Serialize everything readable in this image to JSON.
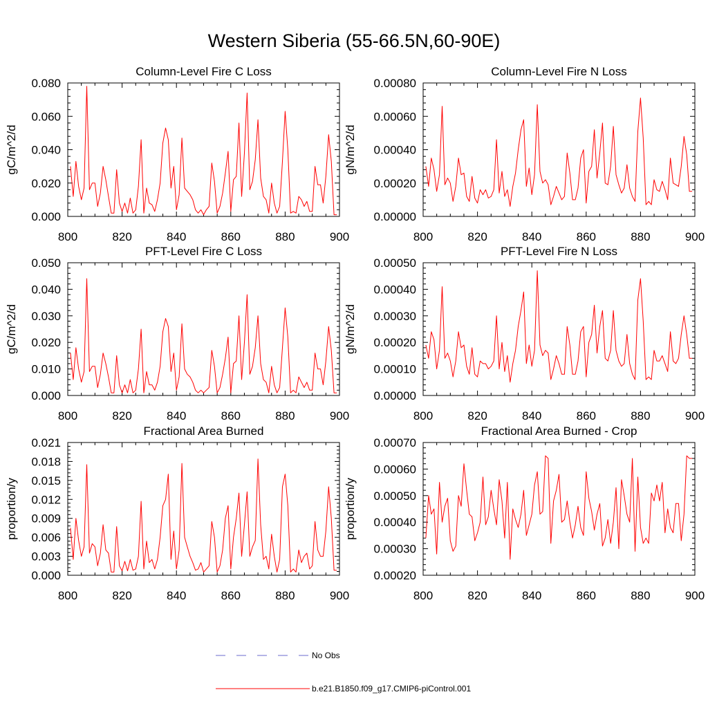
{
  "title": "Western Siberia (55-66.5N,60-90E)",
  "legend": {
    "entries": [
      {
        "label": "No Obs",
        "color": "#6a6acd",
        "style": "dashed"
      },
      {
        "label": "b.e21.B1850.f09_g17.CMIP6-piControl.001",
        "color": "#ff0000",
        "style": "solid"
      }
    ]
  },
  "chart_data": [
    {
      "type": "line",
      "title": "Column-Level Fire C Loss",
      "ylabel": "gC/m^2/d",
      "xlim": [
        800,
        900
      ],
      "ylim": [
        0,
        0.08
      ],
      "xticks": [
        "800",
        "820",
        "840",
        "860",
        "880",
        "900"
      ],
      "yticks": [
        "0.000",
        "0.020",
        "0.040",
        "0.060",
        "0.080"
      ],
      "color": "#ff0000",
      "x_start": 801,
      "values": [
        0.03,
        0.012,
        0.033,
        0.018,
        0.01,
        0.017,
        0.078,
        0.016,
        0.02,
        0.02,
        0.006,
        0.014,
        0.03,
        0.022,
        0.012,
        0.002,
        0.002,
        0.028,
        0.008,
        0.003,
        0.008,
        0.002,
        0.011,
        0.002,
        0.004,
        0.018,
        0.046,
        0.002,
        0.017,
        0.008,
        0.007,
        0.003,
        0.01,
        0.02,
        0.044,
        0.053,
        0.046,
        0.017,
        0.03,
        0.004,
        0.013,
        0.047,
        0.017,
        0.015,
        0.013,
        0.01,
        0.004,
        0.002,
        0.004,
        0.001,
        0.004,
        0.006,
        0.032,
        0.021,
        0.002,
        0.006,
        0.014,
        0.026,
        0.039,
        0.003,
        0.022,
        0.024,
        0.056,
        0.012,
        0.038,
        0.074,
        0.016,
        0.021,
        0.034,
        0.058,
        0.023,
        0.012,
        0.01,
        0.002,
        0.02,
        0.008,
        0.002,
        0.006,
        0.033,
        0.063,
        0.04,
        0.002,
        0.003,
        0.002,
        0.012,
        0.01,
        0.006,
        0.009,
        0.003,
        0.003,
        0.03,
        0.019,
        0.019,
        0.008,
        0.024,
        0.049,
        0.033,
        0.001,
        0.001
      ]
    },
    {
      "type": "line",
      "title": "Column-Level Fire N Loss",
      "ylabel": "gN/m^2/d",
      "xlim": [
        800,
        900
      ],
      "ylim": [
        0,
        0.0008
      ],
      "xticks": [
        "800",
        "820",
        "840",
        "860",
        "880",
        "900"
      ],
      "yticks": [
        "0.00000",
        "0.00020",
        "0.00040",
        "0.00060",
        "0.00080"
      ],
      "color": "#ff0000",
      "x_start": 801,
      "values": [
        0.0003,
        0.00018,
        0.00035,
        0.00028,
        0.00015,
        0.00025,
        0.00066,
        0.00019,
        0.00023,
        0.0002,
        9e-05,
        0.00018,
        0.00035,
        0.00025,
        0.00026,
        0.00012,
        9e-05,
        0.00024,
        0.00011,
        8e-05,
        0.00016,
        0.00013,
        0.00016,
        0.00011,
        0.00012,
        0.00016,
        0.00046,
        0.00014,
        0.00027,
        0.00012,
        0.00016,
        6e-05,
        0.00018,
        0.00026,
        0.0004,
        0.00052,
        0.00058,
        0.00018,
        0.00029,
        0.00013,
        0.00025,
        0.00067,
        0.00027,
        0.0002,
        0.00022,
        0.00019,
        7e-05,
        0.00012,
        0.00018,
        0.00014,
        0.0001,
        0.00012,
        0.00038,
        0.00026,
        0.0001,
        0.0001,
        0.00017,
        0.00035,
        0.0004,
        8e-05,
        0.00027,
        0.0003,
        0.00052,
        0.00023,
        0.00038,
        0.00056,
        0.0002,
        0.00019,
        0.0003,
        0.00054,
        0.00025,
        0.00019,
        0.00014,
        0.00017,
        0.00031,
        0.00017,
        0.00012,
        9e-05,
        0.00051,
        0.00071,
        0.00047,
        7e-05,
        9e-05,
        7e-05,
        0.00022,
        0.00016,
        0.00015,
        0.00021,
        0.00016,
        0.0001,
        0.00035,
        0.0002,
        0.00019,
        0.00018,
        0.0003,
        0.00048,
        0.00037,
        0.00015,
        0.00015
      ]
    },
    {
      "type": "line",
      "title": "PFT-Level Fire C Loss",
      "ylabel": "gC/m^2/d",
      "xlim": [
        800,
        900
      ],
      "ylim": [
        0,
        0.05
      ],
      "xticks": [
        "800",
        "820",
        "840",
        "860",
        "880",
        "900"
      ],
      "yticks": [
        "0.000",
        "0.010",
        "0.020",
        "0.030",
        "0.040",
        "0.050"
      ],
      "color": "#ff0000",
      "x_start": 801,
      "values": [
        0.016,
        0.006,
        0.018,
        0.01,
        0.005,
        0.009,
        0.044,
        0.009,
        0.011,
        0.011,
        0.003,
        0.008,
        0.016,
        0.012,
        0.007,
        0.001,
        0.001,
        0.015,
        0.004,
        0.001,
        0.004,
        0.001,
        0.006,
        0.001,
        0.002,
        0.01,
        0.025,
        0.001,
        0.009,
        0.004,
        0.004,
        0.002,
        0.005,
        0.011,
        0.024,
        0.029,
        0.026,
        0.009,
        0.016,
        0.002,
        0.007,
        0.027,
        0.01,
        0.008,
        0.007,
        0.005,
        0.002,
        0.001,
        0.002,
        0.001,
        0.002,
        0.003,
        0.017,
        0.011,
        0.001,
        0.003,
        0.008,
        0.014,
        0.022,
        0.001,
        0.012,
        0.013,
        0.03,
        0.006,
        0.02,
        0.038,
        0.008,
        0.011,
        0.018,
        0.03,
        0.012,
        0.006,
        0.005,
        0.001,
        0.011,
        0.004,
        0.001,
        0.003,
        0.018,
        0.033,
        0.022,
        0.001,
        0.002,
        0.001,
        0.007,
        0.005,
        0.003,
        0.005,
        0.002,
        0.002,
        0.016,
        0.01,
        0.01,
        0.004,
        0.013,
        0.026,
        0.017,
        0.001,
        0.001
      ]
    },
    {
      "type": "line",
      "title": "PFT-Level Fire N Loss",
      "ylabel": "gN/m^2/d",
      "xlim": [
        800,
        900
      ],
      "ylim": [
        0,
        0.0005
      ],
      "xticks": [
        "800",
        "820",
        "840",
        "860",
        "880",
        "900"
      ],
      "yticks": [
        "0.00000",
        "0.00010",
        "0.00020",
        "0.00030",
        "0.00040",
        "0.00050"
      ],
      "color": "#ff0000",
      "x_start": 801,
      "values": [
        0.00019,
        0.00014,
        0.00024,
        0.00021,
        0.0001,
        0.00017,
        0.00041,
        0.00014,
        0.00016,
        0.00013,
        7e-05,
        0.00013,
        0.00024,
        0.00018,
        0.00019,
        0.00011,
        8e-05,
        0.00018,
        8e-05,
        7e-05,
        0.00013,
        0.00012,
        0.00012,
        0.0001,
        0.00011,
        0.00013,
        0.0003,
        0.0001,
        0.0002,
        9e-05,
        0.00015,
        5e-05,
        0.00012,
        0.00017,
        0.00026,
        0.00032,
        0.00039,
        0.00012,
        0.00019,
        0.00011,
        0.00017,
        0.00047,
        0.00019,
        0.00015,
        0.00017,
        0.00016,
        6e-05,
        0.0001,
        0.00015,
        0.00012,
        8e-05,
        8e-05,
        0.00026,
        0.00019,
        8e-05,
        8e-05,
        0.00013,
        0.00024,
        0.00026,
        7e-05,
        0.0002,
        0.00023,
        0.00034,
        0.00016,
        0.00026,
        0.00032,
        0.00014,
        0.00013,
        0.00017,
        0.00032,
        0.00017,
        0.00013,
        0.00011,
        0.00012,
        0.00023,
        0.00012,
        8e-05,
        6e-05,
        0.00036,
        0.00044,
        0.00028,
        6e-05,
        7e-05,
        6e-05,
        0.00017,
        0.00013,
        0.00013,
        0.00015,
        0.00012,
        9e-05,
        0.00024,
        0.00013,
        0.00012,
        0.00014,
        0.00023,
        0.0003,
        0.00023,
        0.00014,
        0.00014
      ]
    },
    {
      "type": "line",
      "title": "Fractional Area Burned",
      "ylabel": "proportion/y",
      "xlim": [
        800,
        900
      ],
      "ylim": [
        0,
        0.021
      ],
      "xticks": [
        "800",
        "820",
        "840",
        "860",
        "880",
        "900"
      ],
      "yticks": [
        "0.000",
        "0.003",
        "0.006",
        "0.009",
        "0.012",
        "0.015",
        "0.018",
        "0.021"
      ],
      "color": "#ff0000",
      "x_start": 801,
      "values": [
        0.0075,
        0.0025,
        0.009,
        0.0055,
        0.003,
        0.0045,
        0.0175,
        0.0035,
        0.005,
        0.0045,
        0.0015,
        0.0035,
        0.008,
        0.004,
        0.0035,
        0.0005,
        0.0005,
        0.0077,
        0.0015,
        0.0007,
        0.0022,
        0.0007,
        0.0025,
        0.0008,
        0.001,
        0.003,
        0.0117,
        0.001,
        0.0054,
        0.002,
        0.0025,
        0.001,
        0.0025,
        0.006,
        0.011,
        0.012,
        0.016,
        0.0025,
        0.007,
        0.001,
        0.004,
        0.0177,
        0.006,
        0.0045,
        0.003,
        0.002,
        0.0008,
        0.001,
        0.002,
        0.0005,
        0.001,
        0.0015,
        0.0085,
        0.006,
        0.0005,
        0.0015,
        0.004,
        0.009,
        0.011,
        0.001,
        0.006,
        0.009,
        0.013,
        0.003,
        0.008,
        0.0132,
        0.003,
        0.0045,
        0.0055,
        0.0184,
        0.008,
        0.0025,
        0.003,
        0.001,
        0.0065,
        0.003,
        0.0005,
        0.0025,
        0.014,
        0.016,
        0.011,
        0.0005,
        0.001,
        0.0005,
        0.004,
        0.002,
        0.003,
        0.0035,
        0.001,
        0.0015,
        0.0085,
        0.004,
        0.003,
        0.003,
        0.007,
        0.014,
        0.009,
        0.0008,
        0.0008
      ]
    },
    {
      "type": "line",
      "title": "Fractional Area Burned - Crop",
      "ylabel": "proportion/y",
      "xlim": [
        800,
        900
      ],
      "ylim": [
        0.0002,
        0.0007
      ],
      "xticks": [
        "800",
        "820",
        "840",
        "860",
        "880",
        "900"
      ],
      "yticks": [
        "0.00020",
        "0.00030",
        "0.00040",
        "0.00050",
        "0.00060",
        "0.00070"
      ],
      "color": "#ff0000",
      "x_start": 801,
      "values": [
        0.00034,
        0.0005,
        0.00043,
        0.00045,
        0.00028,
        0.00055,
        0.0004,
        0.00046,
        0.00049,
        0.00033,
        0.00029,
        0.00031,
        0.0005,
        0.00046,
        0.00062,
        0.00052,
        0.00043,
        0.00042,
        0.00033,
        0.00036,
        0.0004,
        0.00057,
        0.00039,
        0.00042,
        0.00052,
        0.00045,
        0.00039,
        0.00056,
        0.00048,
        0.00034,
        0.00055,
        0.00026,
        0.00045,
        0.00041,
        0.00038,
        0.00043,
        0.00052,
        0.00035,
        0.00039,
        0.00043,
        0.00054,
        0.00059,
        0.00043,
        0.00044,
        0.00065,
        0.00064,
        0.00032,
        0.00048,
        0.00052,
        0.00058,
        0.0004,
        0.00041,
        0.00048,
        0.0004,
        0.00034,
        0.00039,
        0.00046,
        0.00038,
        0.00035,
        0.00059,
        0.00049,
        0.00044,
        0.00037,
        0.00043,
        0.00047,
        0.00031,
        0.00034,
        0.00041,
        0.00032,
        0.0004,
        0.00053,
        0.0003,
        0.00056,
        0.0005,
        0.00043,
        0.0004,
        0.00064,
        0.00029,
        0.00057,
        0.00038,
        0.00032,
        0.00034,
        0.00032,
        0.00051,
        0.00048,
        0.00054,
        0.00048,
        0.00055,
        0.00036,
        0.00045,
        0.00038,
        0.00036,
        0.00047,
        0.00047,
        0.00033,
        0.00043,
        0.00065,
        0.00064,
        0.00064
      ]
    }
  ]
}
